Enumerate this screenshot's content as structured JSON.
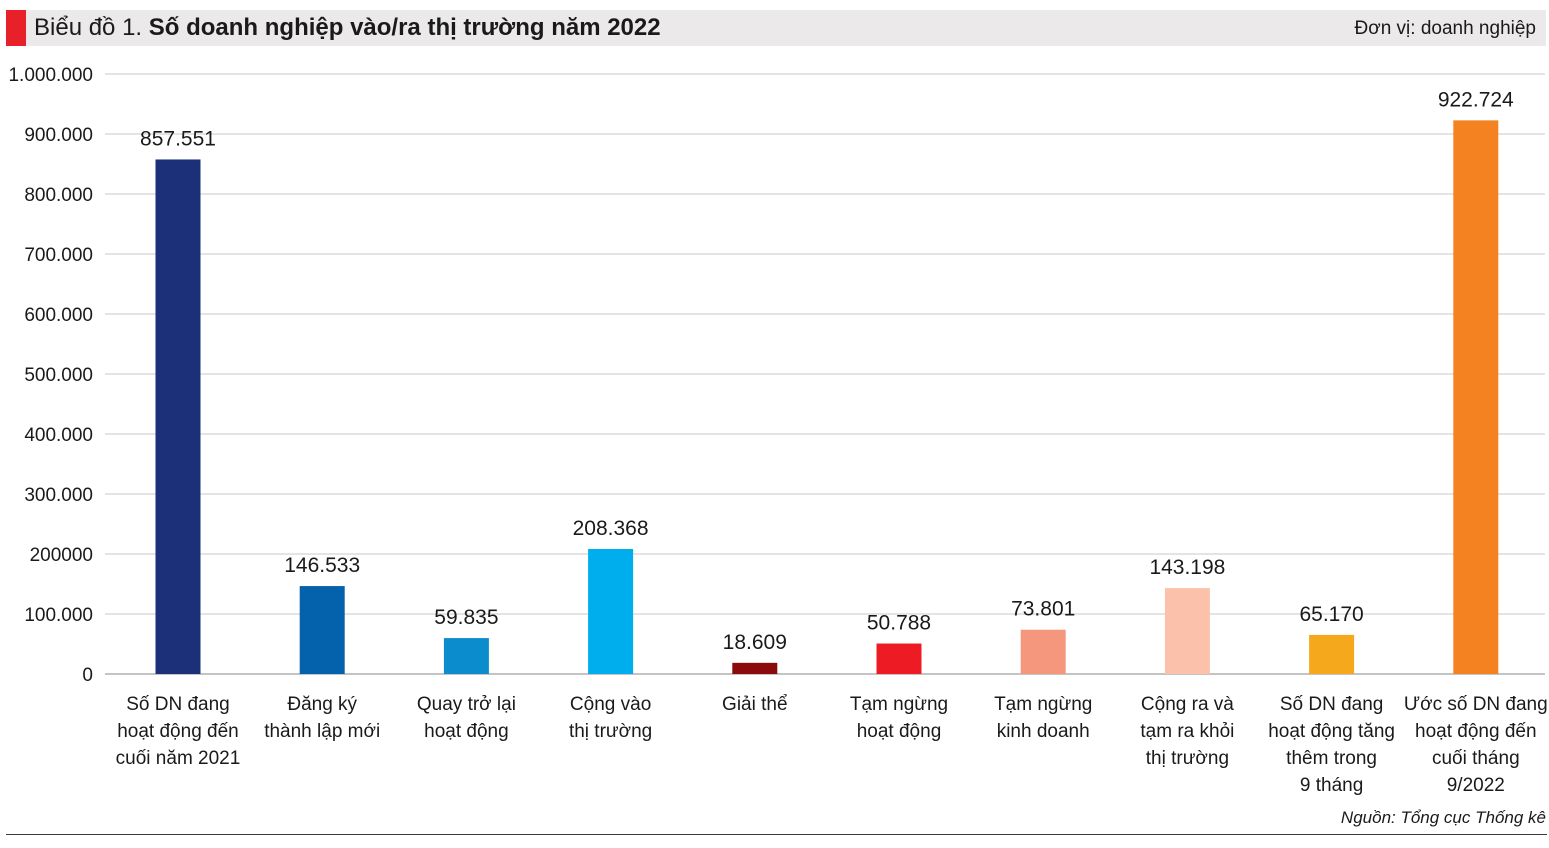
{
  "title": {
    "prefix": "Biểu đồ 1. ",
    "main": "Số doanh nghiệp vào/ra thị trường năm 2022",
    "accent_color": "#e8202a",
    "bar_color": "#ebe9e9"
  },
  "unit_label": "Đơn vị: doanh nghiệp",
  "source": "Nguồn: Tổng cục Thống kê",
  "chart_data": {
    "type": "bar",
    "title": "Số doanh nghiệp vào/ra thị trường năm 2022",
    "ylabel": "doanh nghiệp",
    "ylim": [
      0,
      1000000
    ],
    "grid": true,
    "yticks": [
      {
        "value": 0,
        "label": "0"
      },
      {
        "value": 100000,
        "label": "100.000"
      },
      {
        "value": 200000,
        "label": "200000"
      },
      {
        "value": 300000,
        "label": "300.000"
      },
      {
        "value": 400000,
        "label": "400.000"
      },
      {
        "value": 500000,
        "label": "500.000"
      },
      {
        "value": 600000,
        "label": "600.000"
      },
      {
        "value": 700000,
        "label": "700.000"
      },
      {
        "value": 800000,
        "label": "800.000"
      },
      {
        "value": 900000,
        "label": "900.000"
      },
      {
        "value": 1000000,
        "label": "1.000.000"
      }
    ],
    "categories": [
      [
        "Số DN đang",
        "hoạt động đến",
        "cuối năm 2021"
      ],
      [
        "Đăng ký",
        "thành lập mới"
      ],
      [
        "Quay trở lại",
        "hoạt động"
      ],
      [
        "Cộng vào",
        "thị trường"
      ],
      [
        "Giải thể"
      ],
      [
        "Tạm ngừng",
        "hoạt động"
      ],
      [
        "Tạm ngừng",
        "kinh doanh"
      ],
      [
        "Cộng ra và",
        "tạm ra khỏi",
        "thị trường"
      ],
      [
        "Số DN đang",
        "hoạt động tăng",
        "thêm trong",
        "9 tháng"
      ],
      [
        "Ước số DN đang",
        "hoạt động đến",
        "cuối tháng",
        "9/2022"
      ]
    ],
    "values": [
      857551,
      146533,
      59835,
      208368,
      18609,
      50788,
      73801,
      143198,
      65170,
      922724
    ],
    "value_labels": [
      "857.551",
      "146.533",
      "59.835",
      "208.368",
      "18.609",
      "50.788",
      "73.801",
      "143.198",
      "65.170",
      "922.724"
    ],
    "colors": [
      "#1b3079",
      "#0461ab",
      "#0b8ccc",
      "#00aeed",
      "#8b0a0c",
      "#ed1c24",
      "#f4977c",
      "#fbc1ab",
      "#f5a81c",
      "#f58220"
    ]
  }
}
